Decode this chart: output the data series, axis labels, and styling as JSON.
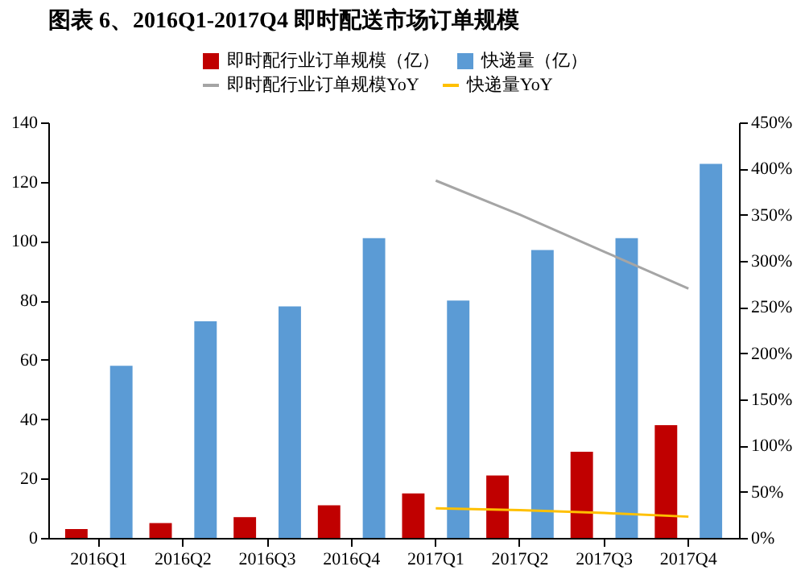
{
  "chart_data": {
    "type": "bar",
    "title": "图表 6、2016Q1-2017Q4 即时配送市场订单规模",
    "categories": [
      "2016Q1",
      "2016Q2",
      "2016Q3",
      "2016Q4",
      "2017Q1",
      "2017Q2",
      "2017Q3",
      "2017Q4"
    ],
    "series": [
      {
        "name": "即时配行业订单规模（亿）",
        "color": "#c00000",
        "values": [
          3,
          5,
          7,
          11,
          15,
          21,
          29,
          38
        ]
      },
      {
        "name": "快递量（亿）",
        "color": "#5b9bd5",
        "values": [
          58,
          73,
          78,
          101,
          80,
          97,
          101,
          126
        ]
      },
      {
        "name": "即时配行业订单规模YoY",
        "type": "line",
        "axis": "y2",
        "color": "#a5a5a5",
        "values": [
          null,
          null,
          null,
          null,
          387,
          350,
          310,
          270
        ]
      },
      {
        "name": "快递量YoY",
        "type": "line",
        "axis": "y2",
        "color": "#ffc000",
        "values": [
          null,
          null,
          null,
          null,
          32,
          30,
          27,
          23
        ]
      }
    ],
    "ylim": [
      0,
      140
    ],
    "yticks": [
      0,
      20,
      40,
      60,
      80,
      100,
      120,
      140
    ],
    "y2lim": [
      0,
      450
    ],
    "y2ticks": [
      {
        "value": 0,
        "label": "0%"
      },
      {
        "value": 50,
        "label": "50%"
      },
      {
        "value": 100,
        "label": "100%"
      },
      {
        "value": 150,
        "label": "150%"
      },
      {
        "value": 200,
        "label": "200%"
      },
      {
        "value": 250,
        "label": "250%"
      },
      {
        "value": 300,
        "label": "300%"
      },
      {
        "value": 350,
        "label": "350%"
      },
      {
        "value": 400,
        "label": "400%"
      },
      {
        "value": 450,
        "label": "450%"
      }
    ],
    "legend": "top",
    "grid": false
  }
}
